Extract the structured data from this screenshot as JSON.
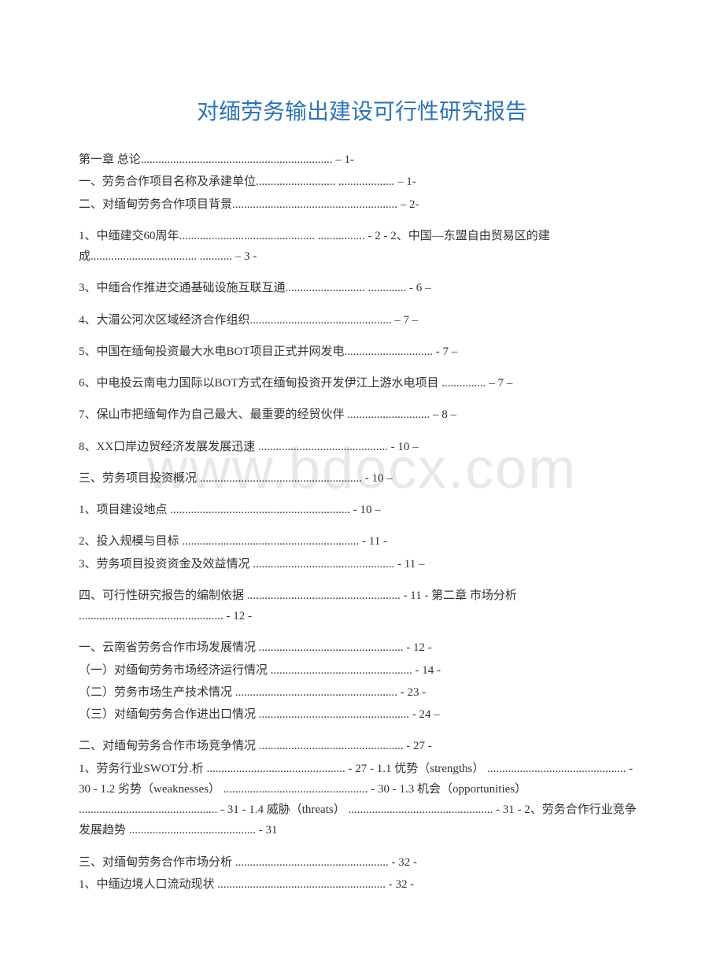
{
  "watermark": "www.bdocx.com",
  "title": "对缅劳务输出建设可行性研究报告",
  "title_color": "#2e74b5",
  "text_color": "#333333",
  "background_color": "#ffffff",
  "watermark_color": "#e8e8e8",
  "title_fontsize": 28,
  "body_fontsize": 15,
  "blocks": [
    {
      "lines": [
        "第一章 总论................................................................. – 1-",
        "一、劳务合作项目名称及承建单位........................... ................... – 1-",
        "二、对缅甸劳务合作项目背景........................................................ – 2-"
      ]
    },
    {
      "lines": [
        "1、中缅建交60周年.............................................. ................ - 2 - 2、中国—东盟自由贸易区的建成.................................... ........... – 3 -"
      ]
    },
    {
      "lines": [
        "3、中缅合作推进交通基础设施互联互通........................... ............. - 6 –"
      ]
    },
    {
      "lines": [
        "4、大湄公河次区域经济合作组织................................................ – 7 –"
      ]
    },
    {
      "lines": [
        "5、中国在缅甸投资最大水电BOT项目正式并网发电.............................. - 7 –"
      ]
    },
    {
      "lines": [
        "6、中电投云南电力国际以BOT方式在缅甸投资开发伊江上游水电项目 ............... – 7 –"
      ]
    },
    {
      "lines": [
        "7、保山市把缅甸作为自己最大、最重要的经贸伙伴 ............................ – 8 –"
      ]
    },
    {
      "lines": [
        "8、XX口岸边贸经济发展发展迅速 ............................................ - 10 –"
      ]
    },
    {
      "lines": [
        "  三、劳务项目投资概况 ....................................................... - 10 –"
      ]
    },
    {
      "lines": [
        "1、项目建设地点 ............................................................. - 10 –"
      ]
    },
    {
      "lines": [
        "2、投入规模与目标 ............................................................ - 11 -",
        "3、劳务项目投资资金及效益情况 ................................................ - 11 –"
      ]
    },
    {
      "lines": [
        "四、可行性研究报告的编制依据 .................................................... - 11 - 第二章 市场分析 ................................................. - 12 -"
      ]
    },
    {
      "lines": [
        "一、云南省劳务合作市场发展情况 ................................................. - 12 -",
        "（一）对缅甸劳务市场经济运行情况 ................................................ - 14 -",
        "（二）劳务市场生产技术情况 ....................................................... - 23 -",
        "（三）对缅甸劳务合作进出口情况 ................................................... - 24 –"
      ]
    },
    {
      "lines": [
        "二、对缅甸劳务合作市场竞争情况 ................................................. - 27 -",
        "1、劳务行业SWOT分.析 ............................................... - 27 - 1.1 优势（strengths） ............................................... - 30 - 1.2 劣势（weaknesses） ................................................. - 30 - 1.3 机会（opportunities） ............................................... - 31 - 1.4 威胁（threats） ................................................. - 31 - 2、劳务合作行业竞争发展趋势 ........................................... - 31"
      ]
    },
    {
      "lines": [
        "三、对缅甸劳务合作市场分析 .................................................... - 32 -",
        "1、中缅边境人口流动现状 ......................................................... - 32 -"
      ]
    }
  ]
}
